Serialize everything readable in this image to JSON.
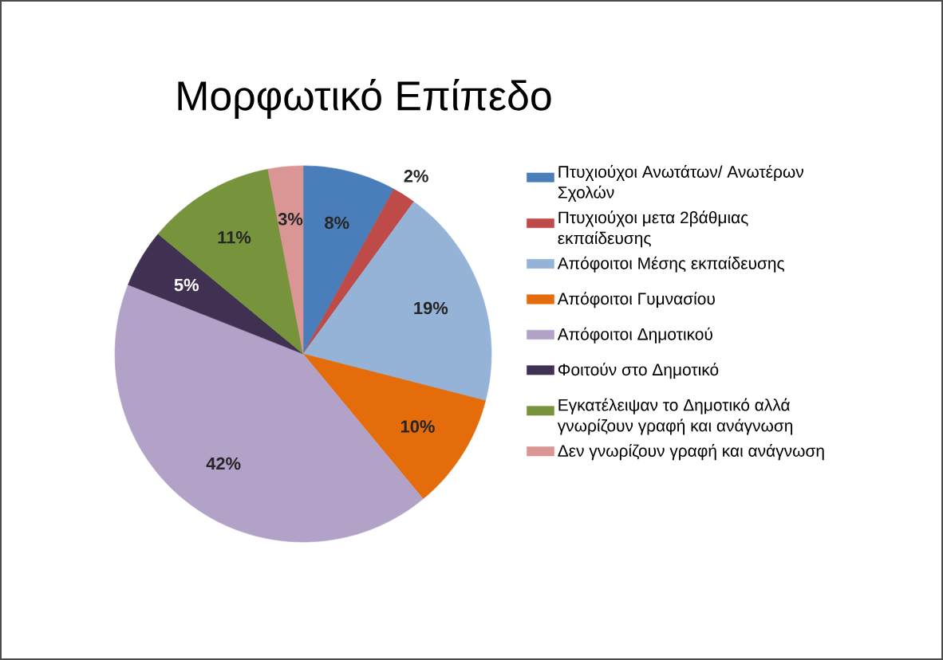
{
  "chart_data": {
    "type": "pie",
    "title": "Μορφωτικό Επίπεδο",
    "categories": [
      "Πτυχιούχοι Ανωτάτων/ Ανωτέρων Σχολών",
      "Πτυχιούχοι μετα 2βάθμιας εκπαίδευσης",
      "Απόφοιτοι Μέσης εκπαίδευσης",
      "Απόφοιτοι Γυμνασίου",
      "Απόφοιτοι Δημοτικού",
      "Φοιτούν στο Δημοτικό",
      "Εγκατέλειψαν το Δημοτικό αλλά γνωρίζουν γραφή και ανάγνωση",
      "Δεν γνωρίζουν γραφή και ανάγνωση"
    ],
    "values": [
      8,
      2,
      19,
      10,
      42,
      5,
      11,
      3
    ],
    "value_labels": [
      "8%",
      "2%",
      "19%",
      "10%",
      "42%",
      "5%",
      "11%",
      "3%"
    ],
    "colors": [
      "#4a7ebb",
      "#be4b48",
      "#95b3d7",
      "#e46c0a",
      "#b3a2c7",
      "#403152",
      "#77933c",
      "#d99694"
    ],
    "legend": "right"
  }
}
